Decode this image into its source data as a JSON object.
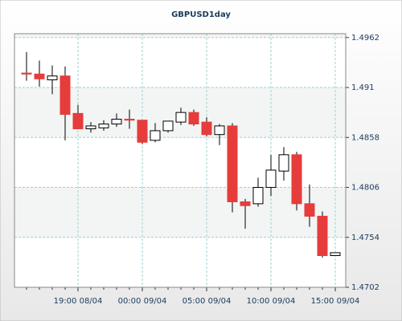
{
  "chart_data": {
    "type": "candlestick",
    "title": "GBPUSD1day",
    "categories": [
      null,
      null,
      null,
      null,
      "19:00 08/04",
      null,
      null,
      null,
      null,
      "00:00 09/04",
      null,
      null,
      null,
      null,
      "05:00 09/04",
      null,
      null,
      null,
      null,
      "10:00 09/04",
      null,
      null,
      null,
      null,
      "15:00 09/04"
    ],
    "open": [
      1.4925,
      1.4924,
      1.4918,
      1.4922,
      1.4883,
      1.4867,
      1.4868,
      1.4872,
      1.4877,
      1.4876,
      1.4855,
      1.4865,
      1.4874,
      1.4884,
      1.4874,
      1.4861,
      1.487,
      1.4791,
      1.4789,
      1.4806,
      1.4823,
      1.484,
      1.4789,
      1.4776,
      1.4735
    ],
    "high": [
      1.4947,
      1.4938,
      1.4933,
      1.4932,
      1.4892,
      1.4874,
      1.4876,
      1.4883,
      1.4887,
      1.4876,
      1.4873,
      1.4875,
      1.4889,
      1.4887,
      1.4879,
      1.4872,
      1.4873,
      1.4794,
      1.4816,
      1.484,
      1.4848,
      1.4843,
      1.4809,
      1.4781,
      1.4738
    ],
    "low": [
      1.4917,
      1.4911,
      1.4903,
      1.4855,
      1.4867,
      1.4863,
      1.4865,
      1.4869,
      1.4867,
      1.4851,
      1.4853,
      1.4863,
      1.4871,
      1.487,
      1.4859,
      1.485,
      1.478,
      1.4763,
      1.4786,
      1.4797,
      1.4813,
      1.4782,
      1.4765,
      1.4733,
      1.4735
    ],
    "close": [
      1.4924,
      1.4919,
      1.4922,
      1.4882,
      1.4867,
      1.487,
      1.4872,
      1.4877,
      1.4876,
      1.4853,
      1.4865,
      1.4875,
      1.4884,
      1.4872,
      1.4861,
      1.487,
      1.4791,
      1.4787,
      1.4806,
      1.4824,
      1.484,
      1.4789,
      1.4776,
      1.4735,
      1.4738
    ],
    "up_color": "#ffffff",
    "down_color": "#e63c3c",
    "ylim": [
      1.4702,
      1.4966
    ],
    "yticks": [
      1.4702,
      1.4754,
      1.4806,
      1.4858,
      1.491,
      1.4962
    ],
    "grid": true
  }
}
